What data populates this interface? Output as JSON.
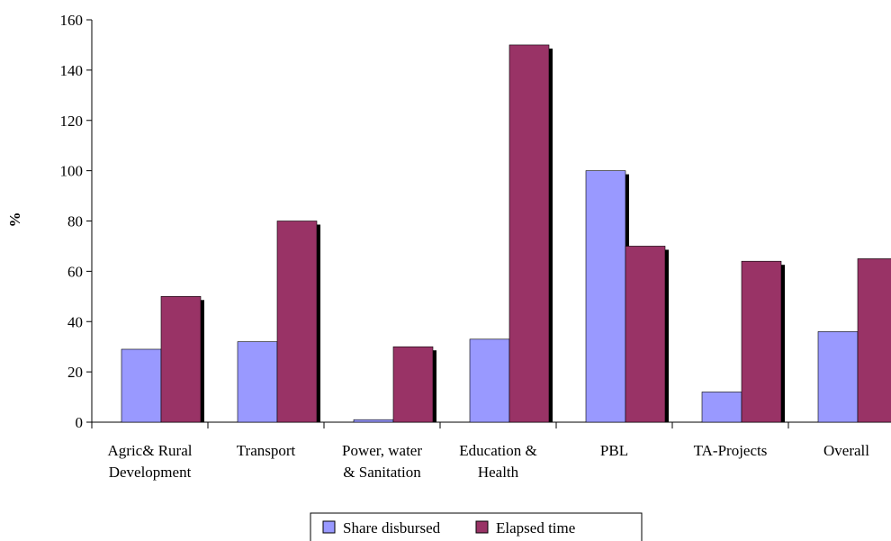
{
  "chart_data": {
    "type": "bar",
    "ylabel": "%",
    "ylim": [
      0,
      160
    ],
    "yticks": [
      0,
      20,
      40,
      60,
      80,
      100,
      120,
      140,
      160
    ],
    "grid": false,
    "legend_position": "bottom",
    "categories": [
      [
        "Agric& Rural",
        "Development"
      ],
      [
        "Transport"
      ],
      [
        "Power, water",
        "& Sanitation"
      ],
      [
        "Education &",
        "Health"
      ],
      [
        "PBL"
      ],
      [
        "TA-Projects"
      ],
      [
        "Overall"
      ]
    ],
    "series": [
      {
        "name": "Share disbursed",
        "color": "#9999ff",
        "values": [
          29,
          32,
          1,
          33,
          100,
          12,
          36
        ]
      },
      {
        "name": "Elapsed time",
        "color": "#993366",
        "values": [
          50,
          80,
          30,
          150,
          70,
          64,
          65
        ]
      }
    ]
  }
}
